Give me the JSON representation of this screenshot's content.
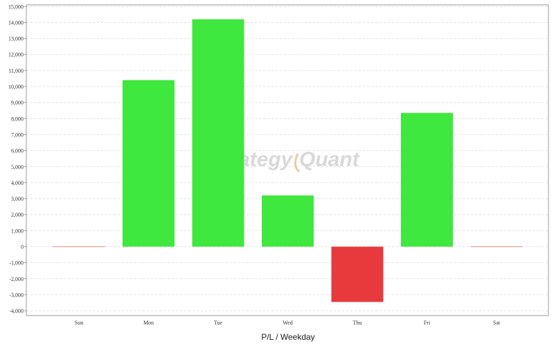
{
  "chart_data": {
    "type": "bar",
    "title": "",
    "xlabel": "P/L / Weekday",
    "ylabel": "",
    "categories": [
      "Sun",
      "Mon",
      "Tue",
      "Wed",
      "Thu",
      "Fri",
      "Sat"
    ],
    "values": [
      0,
      10400,
      14200,
      3200,
      -3450,
      8350,
      0
    ],
    "ylim": [
      -4300,
      15100
    ],
    "yticks": [
      -4000,
      -3000,
      -2000,
      -1000,
      0,
      1000,
      2000,
      3000,
      4000,
      5000,
      6000,
      7000,
      8000,
      9000,
      10000,
      11000,
      12000,
      13000,
      14000,
      15000
    ],
    "ytick_labels": [
      "-4,000",
      "-3,000",
      "-2,000",
      "-1,000",
      "0",
      "1,000",
      "2,000",
      "3,000",
      "4,000",
      "5,000",
      "6,000",
      "7,000",
      "8,000",
      "9,000",
      "10,000",
      "11,000",
      "12,000",
      "13,000",
      "14,000",
      "15,000"
    ],
    "grid": true,
    "colors": {
      "positive": "#3ee83e",
      "negative": "#e8393c",
      "zero": "#e8a090",
      "grid": "#d8d8d8",
      "axis": "#999999"
    }
  },
  "watermark": {
    "text_a": "ategy",
    "text_b": "Quant",
    "color": "#d9d9d9",
    "accent": "#f2c9a0"
  }
}
